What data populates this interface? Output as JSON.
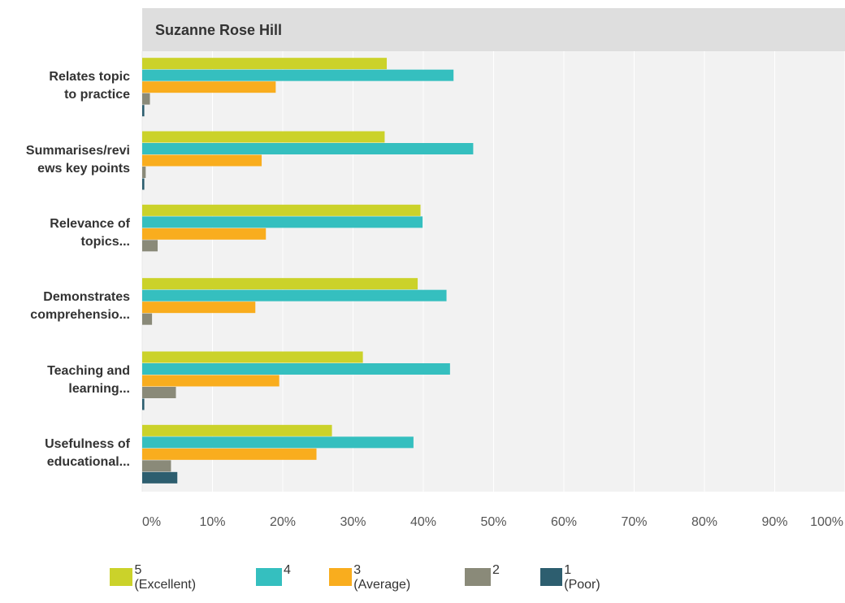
{
  "chart_data": {
    "type": "bar",
    "orientation": "horizontal",
    "title": "Suzanne Rose Hill",
    "categories": [
      [
        "Relates topic",
        "to practice"
      ],
      [
        "Summarises/revi",
        "ews key points"
      ],
      [
        "Relevance of",
        "topics..."
      ],
      [
        "Demonstrates",
        "comprehensio..."
      ],
      [
        "Teaching and",
        "learning..."
      ],
      [
        "Usefulness of",
        "educational..."
      ]
    ],
    "series": [
      {
        "name": "5 (Excellent)",
        "color": "#cbd22a",
        "values": [
          34.8,
          34.5,
          39.6,
          39.2,
          31.4,
          27.0
        ]
      },
      {
        "name": "4",
        "color": "#35bfbf",
        "values": [
          44.3,
          47.1,
          39.9,
          43.3,
          43.8,
          38.6
        ]
      },
      {
        "name": "3 (Average)",
        "color": "#f9ad1e",
        "values": [
          19.0,
          17.0,
          17.6,
          16.1,
          19.5,
          24.8
        ]
      },
      {
        "name": "2",
        "color": "#8a8a79",
        "values": [
          1.1,
          0.5,
          2.2,
          1.4,
          4.8,
          4.1
        ]
      },
      {
        "name": "1 (Poor)",
        "color": "#2d5e6f",
        "values": [
          0.3,
          0.3,
          0.0,
          0.0,
          0.3,
          5.0
        ]
      }
    ],
    "xlim": [
      0,
      100
    ],
    "xticks": [
      "0%",
      "10%",
      "20%",
      "30%",
      "40%",
      "50%",
      "60%",
      "70%",
      "80%",
      "90%",
      "100%"
    ],
    "grid": true,
    "legend_position": "bottom"
  }
}
